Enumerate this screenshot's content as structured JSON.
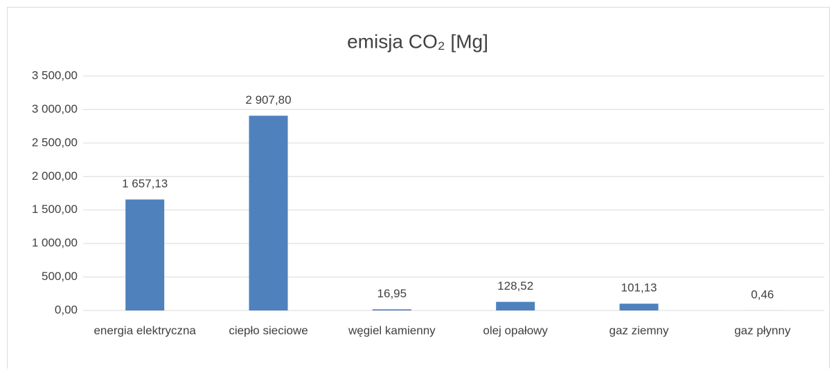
{
  "chart_data": {
    "type": "bar",
    "title": "emisja CO₂ [Mg]",
    "categories": [
      "energia elektryczna",
      "ciepło sieciowe",
      "węgiel kamienny",
      "olej opałowy",
      "gaz ziemny",
      "gaz płynny"
    ],
    "values": [
      1657.13,
      2907.8,
      16.95,
      128.52,
      101.13,
      0.46
    ],
    "value_labels": [
      "1 657,13",
      "2 907,80",
      "16,95",
      "128,52",
      "101,13",
      "0,46"
    ],
    "color": "#4f81bd",
    "ylim": [
      0,
      3500
    ],
    "yticks": [
      {
        "value": 0,
        "label": "0,00"
      },
      {
        "value": 500,
        "label": "500,00"
      },
      {
        "value": 1000,
        "label": "1 000,00"
      },
      {
        "value": 1500,
        "label": "1 500,00"
      },
      {
        "value": 2000,
        "label": "2 000,00"
      },
      {
        "value": 2500,
        "label": "2 500,00"
      },
      {
        "value": 3000,
        "label": "3 000,00"
      },
      {
        "value": 3500,
        "label": "3 500,00"
      }
    ],
    "grid": true
  }
}
